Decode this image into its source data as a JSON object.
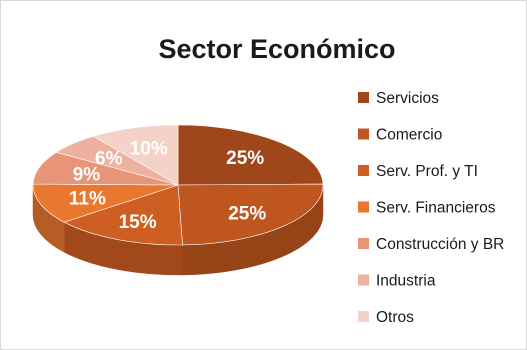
{
  "chart_data": {
    "type": "pie",
    "title": "Sector Económico",
    "legend_position": "right",
    "three_d": true,
    "slices": [
      {
        "label": "Servicios",
        "value": 25,
        "display": "25%",
        "color": "#a0461b"
      },
      {
        "label": "Comercio",
        "value": 25,
        "display": "25%",
        "color": "#c0561f"
      },
      {
        "label": "Serv. Prof. y TI",
        "value": 15,
        "display": "15%",
        "color": "#cf5e22"
      },
      {
        "label": "Serv. Financieros",
        "value": 11,
        "display": "11%",
        "color": "#e9772f"
      },
      {
        "label": "Construcción y BR",
        "value": 9,
        "display": "9%",
        "color": "#e89478"
      },
      {
        "label": "Industria",
        "value": 6,
        "display": "6%",
        "color": "#eeb1a0"
      },
      {
        "label": "Otros",
        "value": 10,
        "display": "10%",
        "color": "#f4d2c8"
      }
    ]
  }
}
